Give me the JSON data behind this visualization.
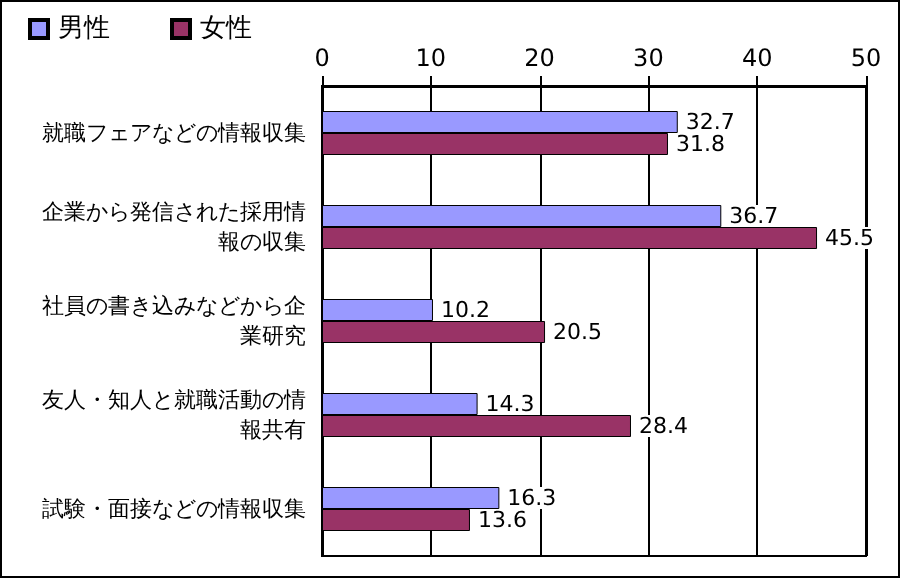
{
  "chart_data": {
    "type": "bar",
    "orientation": "horizontal",
    "categories": [
      "就職フェアなどの情報収集",
      "企業から発信された採用情報の収集",
      "社員の書き込みなどから企業研究",
      "友人・知人と就職活動の情報共有",
      "試験・面接などの情報収集"
    ],
    "series": [
      {
        "name": "男性",
        "color": "#9999ff",
        "values": [
          32.7,
          36.7,
          10.2,
          14.3,
          16.3
        ]
      },
      {
        "name": "女性",
        "color": "#993366",
        "values": [
          31.8,
          45.5,
          20.5,
          28.4,
          13.6
        ]
      }
    ],
    "xlim": [
      0,
      50
    ],
    "xticks": [
      0,
      10,
      20,
      30,
      40,
      50
    ],
    "grid": "x",
    "legend": "top left",
    "data_labels": true
  }
}
